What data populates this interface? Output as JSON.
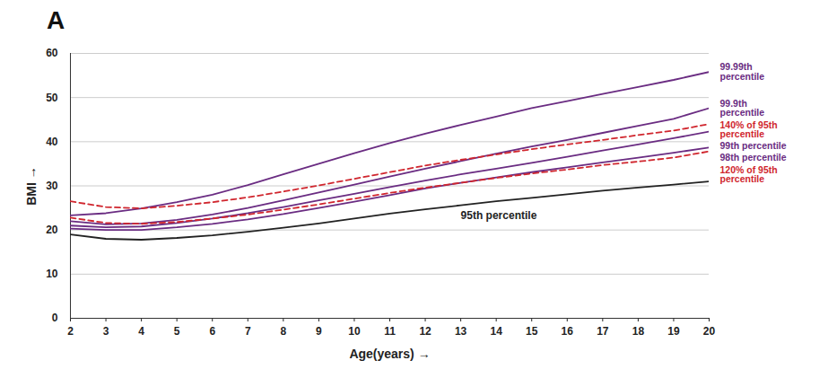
{
  "chart_data": {
    "type": "line",
    "title": "A",
    "x_label": "Age(years)",
    "y_label": "BMI",
    "x": [
      2,
      3,
      4,
      5,
      6,
      7,
      8,
      9,
      10,
      11,
      12,
      13,
      14,
      15,
      16,
      17,
      18,
      19,
      20
    ],
    "series": [
      {
        "name": "99.99th percentile",
        "color": "#6a2c82",
        "line_style": "solid",
        "values": [
          23.3,
          23.8,
          24.9,
          26.3,
          28.0,
          30.2,
          32.6,
          35.0,
          37.4,
          39.7,
          41.8,
          43.8,
          45.7,
          47.6,
          49.2,
          50.8,
          52.4,
          54.0,
          55.8
        ]
      },
      {
        "name": "99.9th percentile",
        "color": "#6a2c82",
        "line_style": "solid",
        "values": [
          22.0,
          21.3,
          21.5,
          22.3,
          23.5,
          25.0,
          26.7,
          28.5,
          30.3,
          32.1,
          33.9,
          35.6,
          37.3,
          38.9,
          40.4,
          42.0,
          43.6,
          45.2,
          47.6
        ]
      },
      {
        "name": "140% of 95th percentile",
        "color": "#d0262e",
        "line_style": "dashed",
        "values": [
          26.5,
          25.2,
          24.9,
          25.5,
          26.3,
          27.4,
          28.7,
          30.1,
          31.6,
          33.1,
          34.6,
          35.9,
          37.1,
          38.3,
          39.4,
          40.4,
          41.5,
          42.5,
          44.0
        ]
      },
      {
        "name": "99th percentile",
        "color": "#6a2c82",
        "line_style": "solid",
        "values": [
          21.0,
          20.6,
          20.8,
          21.6,
          22.6,
          23.8,
          25.2,
          26.7,
          28.2,
          29.7,
          31.2,
          32.6,
          33.9,
          35.2,
          36.6,
          38.0,
          39.4,
          40.8,
          42.3
        ]
      },
      {
        "name": "98th percentile",
        "color": "#6a2c82",
        "line_style": "solid",
        "values": [
          20.3,
          20.0,
          20.0,
          20.6,
          21.4,
          22.4,
          23.6,
          25.0,
          26.4,
          27.9,
          29.4,
          30.7,
          31.9,
          33.1,
          34.2,
          35.3,
          36.4,
          37.5,
          38.7
        ]
      },
      {
        "name": "120% of 95th percentile",
        "color": "#d0262e",
        "line_style": "dashed",
        "values": [
          22.8,
          21.6,
          21.4,
          21.8,
          22.6,
          23.5,
          24.6,
          25.8,
          27.1,
          28.4,
          29.6,
          30.7,
          31.8,
          32.8,
          33.7,
          34.7,
          35.5,
          36.4,
          37.8
        ]
      },
      {
        "name": "95th percentile",
        "color": "#222222",
        "line_style": "solid",
        "values": [
          19.0,
          18.0,
          17.8,
          18.2,
          18.8,
          19.6,
          20.5,
          21.5,
          22.6,
          23.7,
          24.7,
          25.6,
          26.5,
          27.3,
          28.1,
          28.9,
          29.6,
          30.3,
          31.0
        ]
      }
    ],
    "annotations": [
      {
        "text": "95th percentile",
        "x": 13,
        "y": 23.2
      }
    ],
    "xlim": [
      2,
      20
    ],
    "xticks": [
      2,
      3,
      4,
      5,
      6,
      7,
      8,
      9,
      10,
      11,
      12,
      13,
      14,
      15,
      16,
      17,
      18,
      19,
      20
    ],
    "ylim": [
      0,
      60
    ],
    "yticks": [
      0,
      10,
      20,
      30,
      40,
      50,
      60
    ],
    "grid": true
  }
}
